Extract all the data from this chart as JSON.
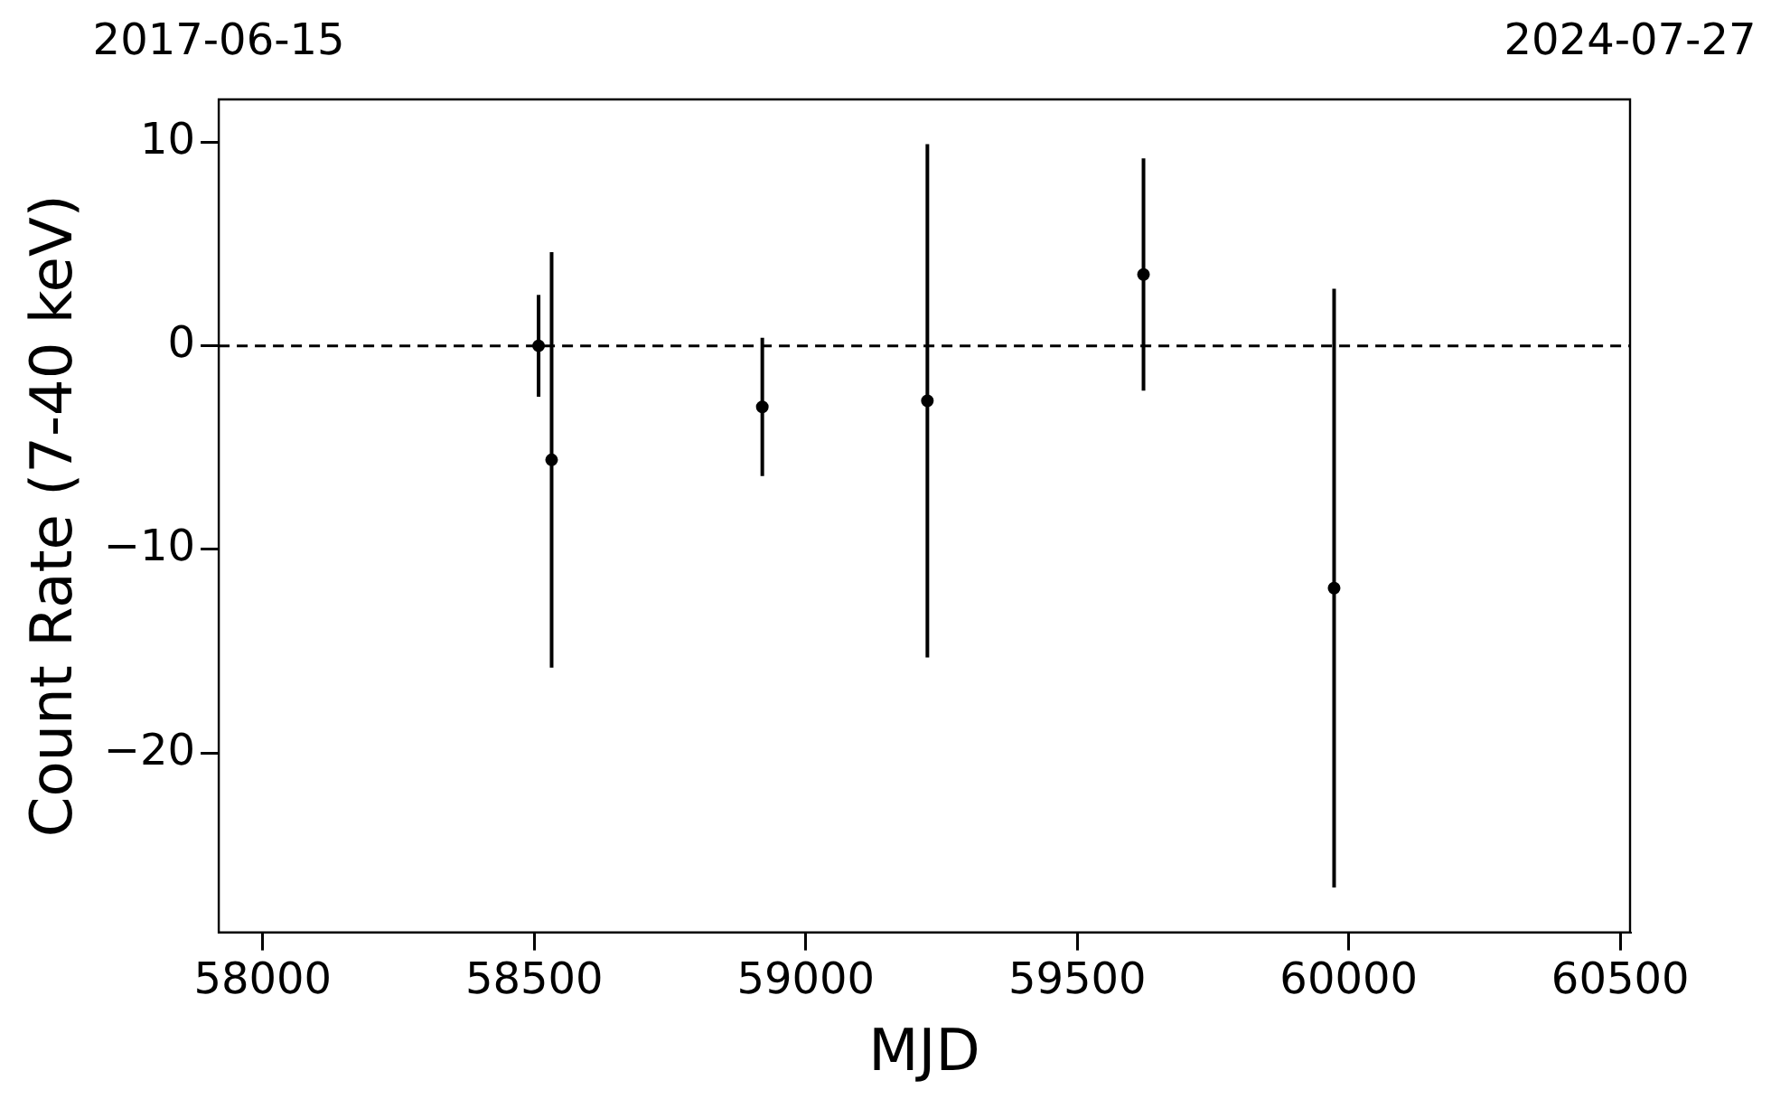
{
  "chart_data": {
    "type": "scatter",
    "xlabel": "MJD",
    "ylabel": "Count Rate (7-40 keV)",
    "annotations": [
      "2017-06-15",
      "2024-07-27"
    ],
    "x": [
      58508,
      58532,
      58920,
      59224,
      59622,
      59973
    ],
    "values": [
      0,
      -5.6,
      -3.0,
      -2.7,
      3.5,
      -11.9
    ],
    "errors": [
      2.5,
      10.2,
      3.4,
      12.6,
      5.7,
      14.7
    ],
    "color": "#000000",
    "marker": "circle",
    "xlim": [
      57919,
      60518
    ],
    "xticks": [
      58000,
      58500,
      59000,
      59500,
      60000,
      60500
    ],
    "ylim": [
      -28.8,
      12.1
    ],
    "yticks": [
      -20,
      -10,
      0,
      10
    ],
    "ref_lines": [
      {
        "axis": "y",
        "value": 0,
        "color": "#000000",
        "line_style": "dashed"
      }
    ],
    "grid": false,
    "legend": false
  }
}
